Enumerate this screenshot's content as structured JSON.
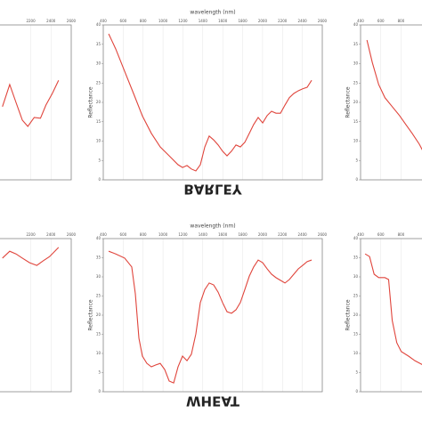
{
  "chart_data": [
    {
      "type": "line",
      "x": [
        1920,
        1992,
        2054,
        2117,
        2171,
        2234,
        2296,
        2350,
        2413,
        2475
      ],
      "values": [
        18.9,
        24.6,
        20.0,
        15.4,
        13.8,
        16.1,
        15.9,
        19.3,
        22.3,
        25.7
      ],
      "color": "#e0453c",
      "xlim": [
        400,
        2600
      ],
      "ylim": [
        0,
        40
      ],
      "xticks": [
        2200,
        2400,
        2600
      ],
      "grid": true
    },
    {
      "type": "line",
      "xlabel": "wavelength (nm)",
      "ylabel": "Reflectance",
      "caption": "BARLEY",
      "x": [
        454,
        525,
        615,
        704,
        793,
        883,
        972,
        1062,
        1151,
        1196,
        1241,
        1285,
        1330,
        1375,
        1420,
        1464,
        1509,
        1554,
        1598,
        1643,
        1688,
        1733,
        1777,
        1822,
        1867,
        1911,
        1956,
        2001,
        2046,
        2090,
        2135,
        2180,
        2225,
        2269,
        2314,
        2359,
        2403,
        2448,
        2493
      ],
      "values": [
        37.7,
        33.8,
        28.0,
        22.3,
        16.5,
        12.0,
        8.5,
        6.2,
        3.9,
        3.2,
        3.7,
        2.8,
        2.3,
        3.9,
        8.5,
        11.3,
        10.3,
        9.0,
        7.4,
        6.2,
        7.4,
        9.0,
        8.5,
        9.7,
        12.0,
        14.3,
        16.1,
        14.7,
        16.6,
        17.7,
        17.2,
        17.2,
        19.3,
        21.2,
        22.3,
        23.0,
        23.5,
        23.9,
        25.7
      ],
      "color": "#e0453c",
      "xlim": [
        400,
        2600
      ],
      "ylim": [
        0,
        40
      ],
      "xticks": [
        400,
        600,
        800,
        1000,
        1200,
        1400,
        1600,
        1800,
        2000,
        2200,
        2400,
        2600
      ],
      "yticks": [
        0,
        5,
        10,
        15,
        20,
        25,
        30,
        35,
        40
      ],
      "grid": true
    },
    {
      "type": "line",
      "ylabel": "Reflectance",
      "x": [
        463,
        516,
        579,
        641,
        713,
        785,
        847,
        910,
        981,
        1017
      ],
      "values": [
        36.1,
        30.3,
        24.6,
        21.2,
        18.9,
        16.6,
        14.3,
        12.0,
        9.2,
        7.4
      ],
      "color": "#e0453c",
      "xlim": [
        400,
        2600
      ],
      "ylim": [
        0,
        40
      ],
      "xticks": [
        400,
        600,
        800
      ],
      "yticks": [
        0,
        5,
        10,
        15,
        20,
        25,
        30,
        35,
        40
      ],
      "grid": true
    },
    {
      "type": "line",
      "x": [
        1920,
        1992,
        2054,
        2117,
        2189,
        2260,
        2323,
        2386,
        2475
      ],
      "values": [
        34.9,
        36.7,
        36.0,
        34.9,
        33.7,
        33.0,
        34.2,
        35.3,
        37.7
      ],
      "color": "#e0453c",
      "xlim": [
        400,
        2600
      ],
      "ylim": [
        0,
        40
      ],
      "xticks": [
        2200,
        2400,
        2600
      ],
      "grid": true
    },
    {
      "type": "line",
      "xlabel": "wavelength (nm)",
      "ylabel": "Reflectance",
      "caption": "WHEAT",
      "x": [
        454,
        525,
        615,
        686,
        722,
        758,
        793,
        838,
        883,
        928,
        972,
        1017,
        1062,
        1107,
        1151,
        1196,
        1241,
        1285,
        1330,
        1375,
        1420,
        1464,
        1509,
        1554,
        1598,
        1643,
        1688,
        1733,
        1777,
        1822,
        1867,
        1911,
        1956,
        2001,
        2046,
        2090,
        2135,
        2180,
        2225,
        2269,
        2314,
        2359,
        2403,
        2448,
        2493
      ],
      "values": [
        36.7,
        36.0,
        34.9,
        32.6,
        25.6,
        14.0,
        9.3,
        7.4,
        6.5,
        7.0,
        7.4,
        5.8,
        2.8,
        2.3,
        6.5,
        9.3,
        8.1,
        9.8,
        15.1,
        23.3,
        26.7,
        28.4,
        27.9,
        26.0,
        23.3,
        20.9,
        20.5,
        21.4,
        23.3,
        26.7,
        30.2,
        32.6,
        34.4,
        33.7,
        32.1,
        30.7,
        29.8,
        29.1,
        28.4,
        29.3,
        30.7,
        32.1,
        33.0,
        34.0,
        34.4
      ],
      "color": "#e0453c",
      "xlim": [
        400,
        2600
      ],
      "ylim": [
        0,
        40
      ],
      "xticks": [
        400,
        600,
        800,
        1000,
        1200,
        1400,
        1600,
        1800,
        2000,
        2200,
        2400,
        2600
      ],
      "yticks": [
        0,
        5,
        10,
        15,
        20,
        25,
        30,
        35,
        40
      ],
      "grid": true
    },
    {
      "type": "line",
      "ylabel": "Reflectance",
      "x": [
        445,
        489,
        534,
        579,
        641,
        677,
        713,
        758,
        802,
        874,
        937,
        1017
      ],
      "values": [
        36.0,
        35.3,
        30.7,
        29.8,
        29.8,
        29.3,
        18.6,
        12.8,
        10.5,
        9.3,
        8.1,
        7.0
      ],
      "color": "#e0453c",
      "xlim": [
        400,
        2600
      ],
      "ylim": [
        0,
        40
      ],
      "xticks": [
        400,
        600,
        800
      ],
      "yticks": [
        0,
        5,
        10,
        15,
        20,
        25,
        30,
        35,
        40
      ],
      "grid": true
    }
  ]
}
